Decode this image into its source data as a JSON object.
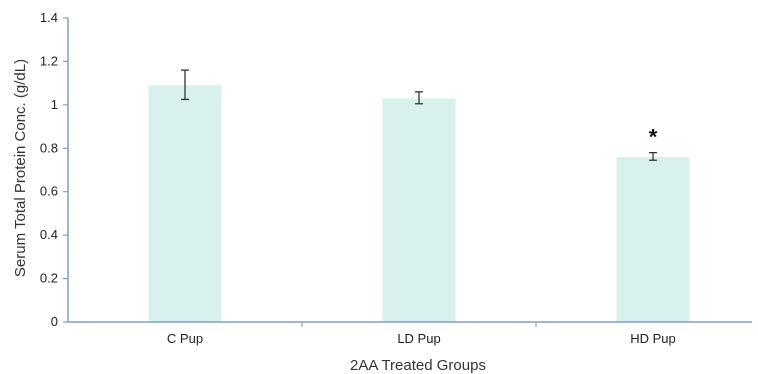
{
  "chart_data": {
    "type": "bar",
    "title": "",
    "xlabel": "2AA Treated Groups",
    "ylabel": "Serum Total Protein Conc. (g/dL)",
    "ylim": [
      0,
      1.4
    ],
    "yticks": [
      0,
      0.2,
      0.4,
      0.6,
      0.8,
      1,
      1.2,
      1.4
    ],
    "ytick_labels": [
      "0",
      "0.2",
      "0.4",
      "0.6",
      "0.8",
      "1",
      "1.2",
      "1.4"
    ],
    "categories": [
      "C Pup",
      "LD Pup",
      "HD Pup"
    ],
    "values": [
      1.09,
      1.03,
      0.76
    ],
    "error_low": [
      1.025,
      1.005,
      0.745
    ],
    "error_high": [
      1.16,
      1.06,
      0.78
    ],
    "significance": [
      "",
      "",
      "*"
    ],
    "grid": false,
    "legend": "none",
    "colors": {
      "bar": "#d8f1ef",
      "axis": "#7f9fca",
      "error_bar": "#333333"
    }
  }
}
